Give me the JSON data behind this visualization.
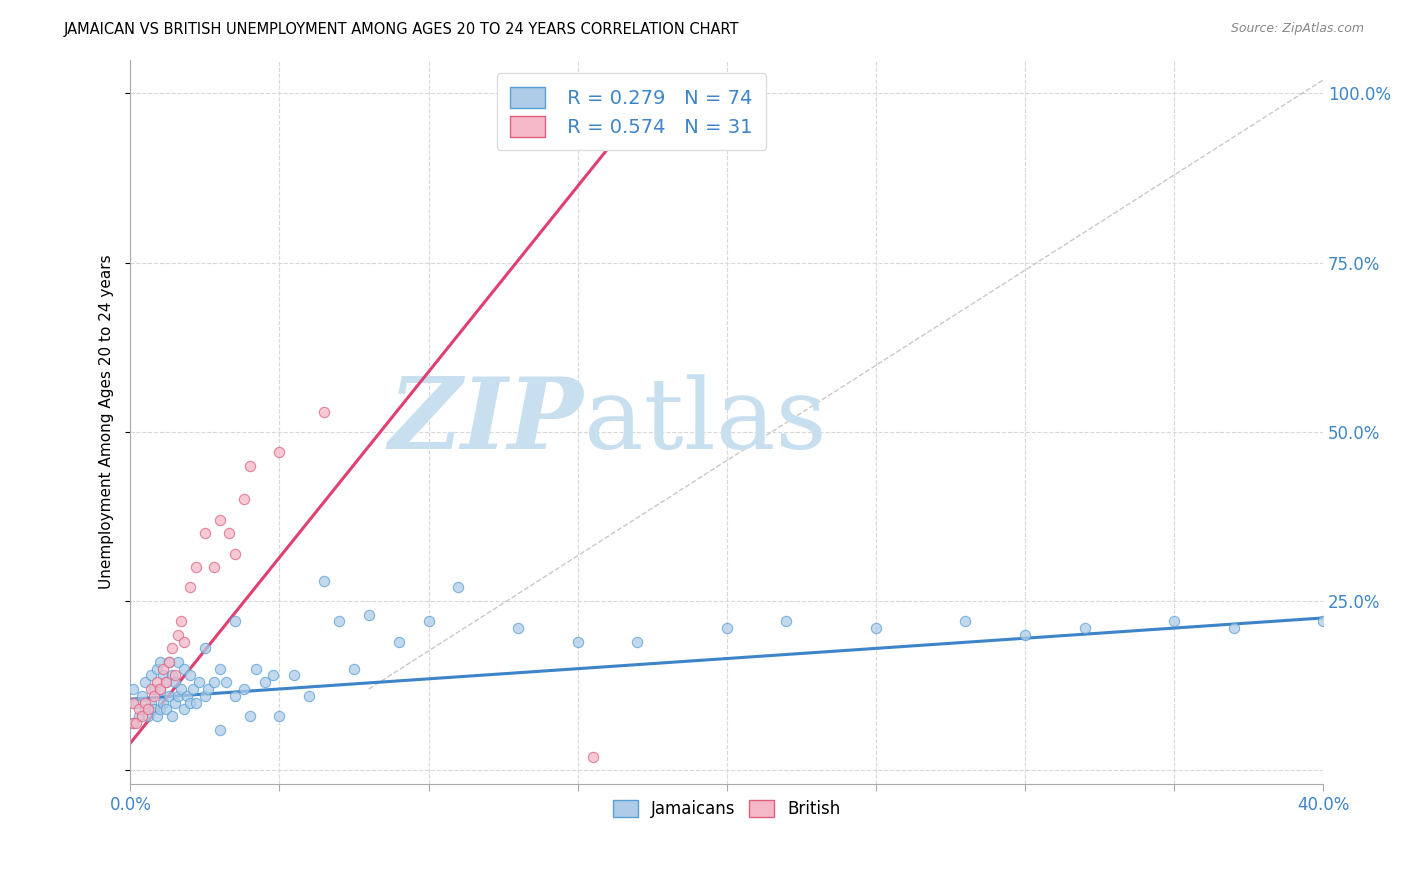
{
  "title": "JAMAICAN VS BRITISH UNEMPLOYMENT AMONG AGES 20 TO 24 YEARS CORRELATION CHART",
  "source": "Source: ZipAtlas.com",
  "ylabel": "Unemployment Among Ages 20 to 24 years",
  "xlim": [
    0.0,
    0.4
  ],
  "ylim": [
    -0.02,
    1.05
  ],
  "xticks": [
    0.0,
    0.05,
    0.1,
    0.15,
    0.2,
    0.25,
    0.3,
    0.35,
    0.4
  ],
  "yticks_right": [
    0.0,
    0.25,
    0.5,
    0.75,
    1.0
  ],
  "ytick_labels_right": [
    "",
    "25.0%",
    "50.0%",
    "75.0%",
    "100.0%"
  ],
  "xtick_labels": [
    "0.0%",
    "",
    "",
    "",
    "",
    "",
    "",
    "",
    "40.0%"
  ],
  "background_color": "#ffffff",
  "grid_color": "#d8d8d8",
  "watermark_zip": "ZIP",
  "watermark_atlas": "atlas",
  "watermark_color_zip": "#c8dff0",
  "watermark_color_atlas": "#c8dff0",
  "jamaicans_fill": "#aecce8",
  "jamaicans_edge": "#5a9fd4",
  "british_fill": "#f4b8c8",
  "british_edge": "#e06080",
  "trendline_jamaicans_color": "#3d85c8",
  "trendline_british_color": "#e04070",
  "trendline_reference_color": "#bbbbbb",
  "legend_R_jamaicans": "R = 0.279",
  "legend_N_jamaicans": "N = 74",
  "legend_R_british": "R = 0.574",
  "legend_N_british": "N = 31",
  "jamaicans_x": [
    0.001,
    0.001,
    0.002,
    0.003,
    0.004,
    0.005,
    0.005,
    0.006,
    0.007,
    0.007,
    0.008,
    0.008,
    0.009,
    0.009,
    0.01,
    0.01,
    0.01,
    0.011,
    0.011,
    0.012,
    0.012,
    0.013,
    0.013,
    0.014,
    0.014,
    0.015,
    0.015,
    0.016,
    0.016,
    0.017,
    0.018,
    0.018,
    0.019,
    0.02,
    0.02,
    0.021,
    0.022,
    0.023,
    0.025,
    0.025,
    0.026,
    0.028,
    0.03,
    0.03,
    0.032,
    0.035,
    0.035,
    0.038,
    0.04,
    0.042,
    0.045,
    0.048,
    0.05,
    0.055,
    0.06,
    0.065,
    0.07,
    0.075,
    0.08,
    0.09,
    0.1,
    0.11,
    0.13,
    0.15,
    0.17,
    0.2,
    0.22,
    0.25,
    0.28,
    0.3,
    0.32,
    0.35,
    0.37,
    0.4
  ],
  "jamaicans_y": [
    0.07,
    0.12,
    0.1,
    0.08,
    0.11,
    0.09,
    0.13,
    0.08,
    0.1,
    0.14,
    0.09,
    0.12,
    0.08,
    0.15,
    0.09,
    0.12,
    0.16,
    0.1,
    0.14,
    0.09,
    0.13,
    0.11,
    0.16,
    0.08,
    0.14,
    0.1,
    0.13,
    0.11,
    0.16,
    0.12,
    0.09,
    0.15,
    0.11,
    0.1,
    0.14,
    0.12,
    0.1,
    0.13,
    0.11,
    0.18,
    0.12,
    0.13,
    0.06,
    0.15,
    0.13,
    0.11,
    0.22,
    0.12,
    0.08,
    0.15,
    0.13,
    0.14,
    0.08,
    0.14,
    0.11,
    0.28,
    0.22,
    0.15,
    0.23,
    0.19,
    0.22,
    0.27,
    0.21,
    0.19,
    0.19,
    0.21,
    0.22,
    0.21,
    0.22,
    0.2,
    0.21,
    0.22,
    0.21,
    0.22
  ],
  "british_x": [
    0.001,
    0.001,
    0.002,
    0.003,
    0.004,
    0.005,
    0.006,
    0.007,
    0.008,
    0.009,
    0.01,
    0.011,
    0.012,
    0.013,
    0.014,
    0.015,
    0.016,
    0.017,
    0.018,
    0.02,
    0.022,
    0.025,
    0.028,
    0.03,
    0.033,
    0.035,
    0.038,
    0.04,
    0.05,
    0.065,
    0.155
  ],
  "british_y": [
    0.07,
    0.1,
    0.07,
    0.09,
    0.08,
    0.1,
    0.09,
    0.12,
    0.11,
    0.13,
    0.12,
    0.15,
    0.13,
    0.16,
    0.18,
    0.14,
    0.2,
    0.22,
    0.19,
    0.27,
    0.3,
    0.35,
    0.3,
    0.37,
    0.35,
    0.32,
    0.4,
    0.45,
    0.47,
    0.53,
    0.02
  ],
  "jamaicans_trend_x": [
    0.0,
    0.4
  ],
  "jamaicans_trend_y": [
    0.105,
    0.225
  ],
  "british_trend_x": [
    0.0,
    0.175
  ],
  "british_trend_y": [
    0.04,
    1.0
  ],
  "reference_line_x": [
    0.08,
    0.4
  ],
  "reference_line_y": [
    0.12,
    1.02
  ]
}
